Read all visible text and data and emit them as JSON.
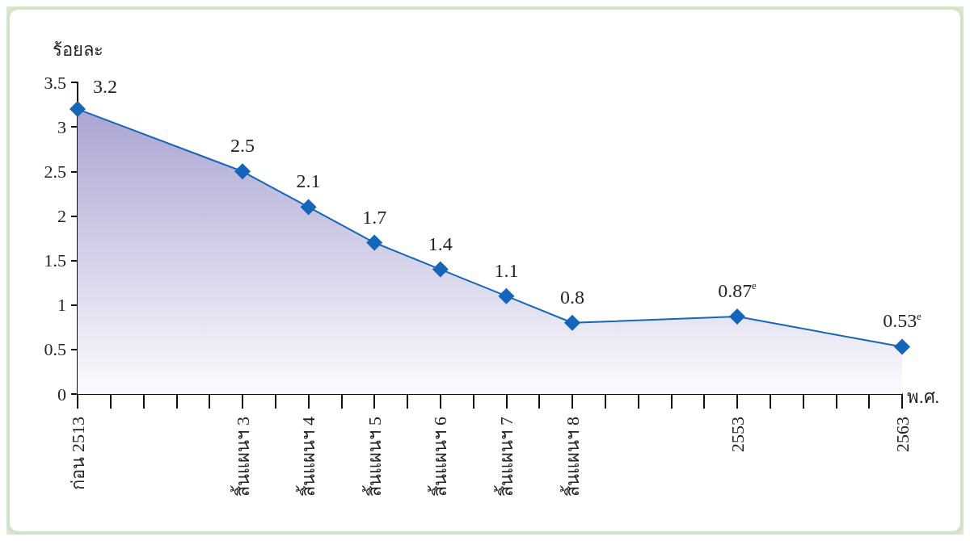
{
  "chart_data": {
    "type": "area",
    "ylabel": "ร้อยละ",
    "xlabel": "พ.ศ.",
    "categories": [
      "ก่อน 2513",
      null,
      null,
      null,
      null,
      "สิ้นแผนฯ 3",
      null,
      "สิ้นแผนฯ 4",
      null,
      "สิ้นแผนฯ 5",
      null,
      "สิ้นแผนฯ 6",
      null,
      "สิ้นแผนฯ 7",
      null,
      "สิ้นแผนฯ 8",
      null,
      null,
      null,
      null,
      "2553",
      null,
      null,
      null,
      null,
      "2563"
    ],
    "series": [
      {
        "color": "#1565b8",
        "values": [
          3.2,
          null,
          null,
          null,
          null,
          2.5,
          null,
          2.1,
          null,
          1.7,
          null,
          1.4,
          null,
          1.1,
          null,
          0.8,
          null,
          null,
          null,
          null,
          0.87,
          null,
          null,
          null,
          null,
          0.53
        ],
        "value_labels": [
          "3.2",
          null,
          null,
          null,
          null,
          "2.5",
          null,
          "2.1",
          null,
          "1.7",
          null,
          "1.4",
          null,
          "1.1",
          null,
          "0.8",
          null,
          null,
          null,
          null,
          "0.87$^{e}$",
          null,
          null,
          null,
          null,
          "0.53$^{e}$"
        ]
      }
    ],
    "ylim": [
      0,
      3.5
    ],
    "yticks": [
      0,
      0.5,
      1,
      1.5,
      2,
      2.5,
      3,
      3.5
    ],
    "grid": false,
    "marker": "diamond",
    "line_style": "solid"
  }
}
